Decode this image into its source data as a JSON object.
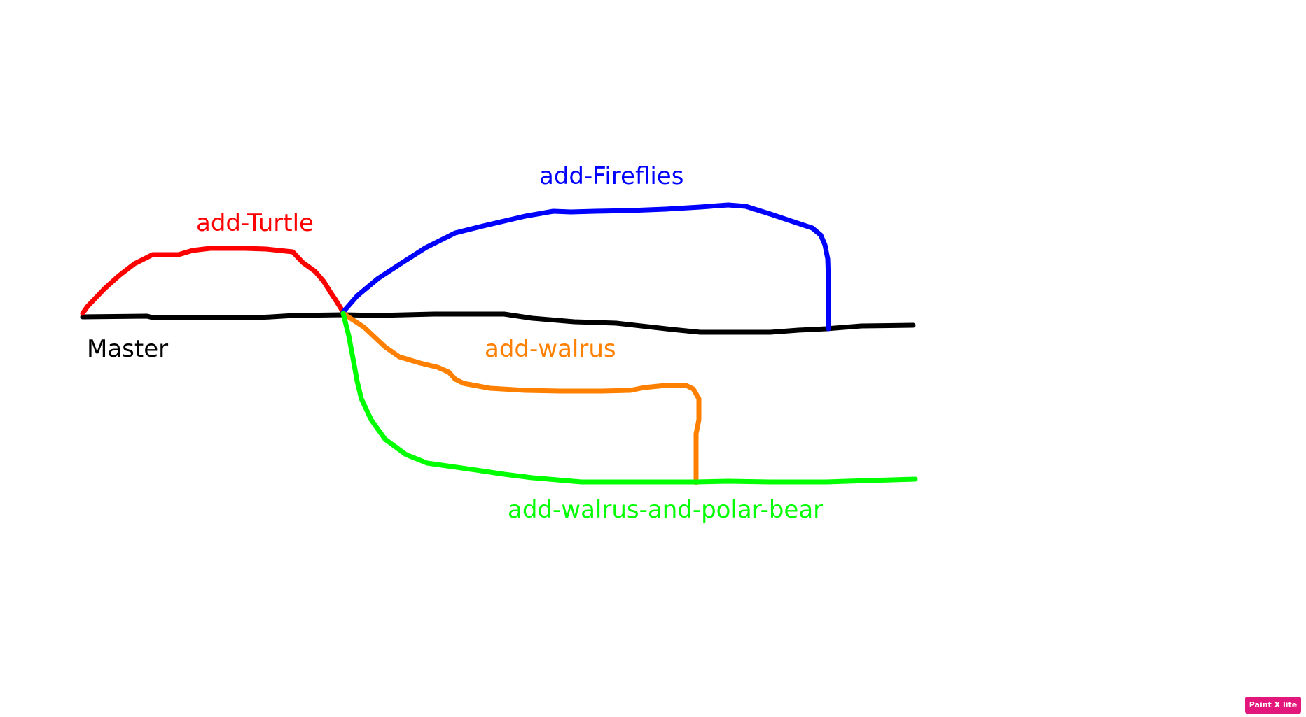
{
  "branches": {
    "master": {
      "label": "Master",
      "color": "#000000"
    },
    "turtle": {
      "label": "add-Turtle",
      "color": "#ff0000"
    },
    "fireflies": {
      "label": "add-Fireflies",
      "color": "#0000ff"
    },
    "walrus": {
      "label": "add-walrus",
      "color": "#ff8000"
    },
    "walrus_polar_bear": {
      "label": "add-walrus-and-polar-bear",
      "color": "#00ff00"
    }
  },
  "watermark": {
    "text": "Paint X lite",
    "color": "#e3167b"
  }
}
